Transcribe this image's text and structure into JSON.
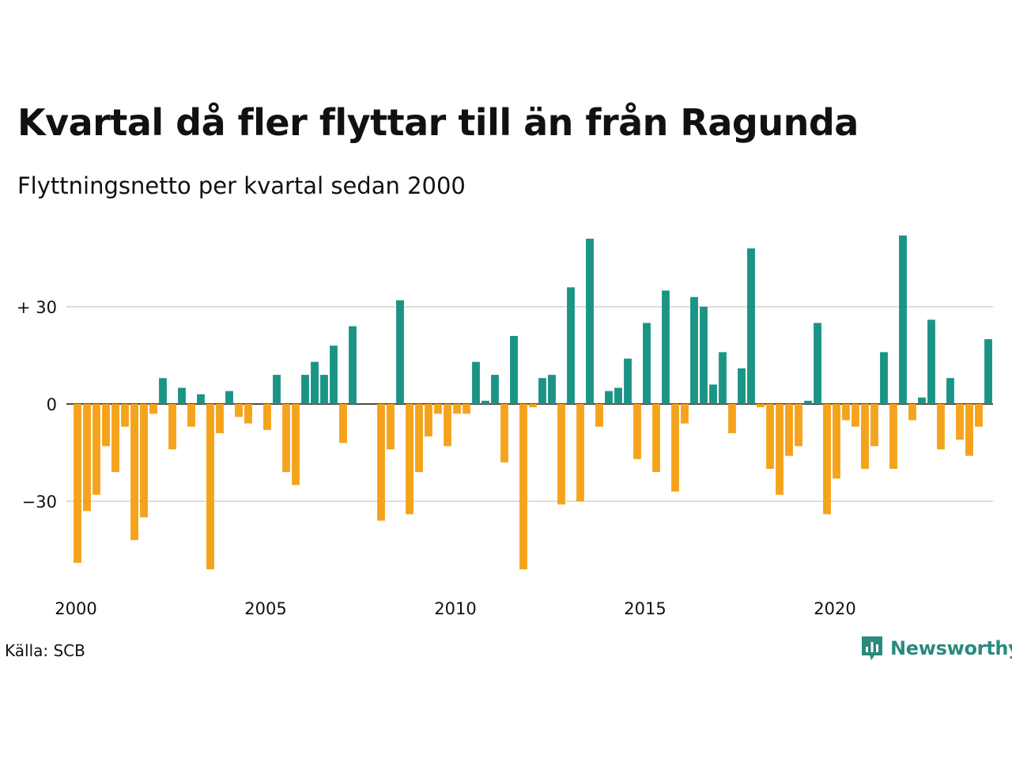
{
  "title": "Kvartal då fler flyttar till än från Ragunda",
  "subtitle": "Flyttningsnetto per kvartal sedan 2000",
  "source": "Källa: SCB",
  "brand": {
    "name": "Newsworthy",
    "logo_icon": "bar-chart-speech-bubble-icon"
  },
  "colors": {
    "positive": "#1a9485",
    "negative": "#f5a31c",
    "grid": "#dddddd",
    "zero_line": "#111111",
    "brand": "#2a8a7c"
  },
  "chart_data": {
    "type": "bar",
    "x_start": "2000 Q1",
    "x_ticks": [
      "2000",
      "2005",
      "2010",
      "2015",
      "2020"
    ],
    "y_ticks": [
      30,
      0,
      -30
    ],
    "y_tick_labels": [
      "+ 30",
      "0",
      "−30"
    ],
    "ylim": [
      -55,
      55
    ],
    "grid": true,
    "values": [
      -49,
      -33,
      -28,
      -13,
      -21,
      -7,
      -42,
      -35,
      -3,
      8,
      -14,
      5,
      -7,
      3,
      -51,
      -9,
      4,
      -4,
      -6,
      0,
      -8,
      9,
      -21,
      -25,
      9,
      13,
      9,
      18,
      -12,
      24,
      0,
      0,
      -36,
      -14,
      32,
      -34,
      -21,
      -10,
      -3,
      -13,
      -3,
      -3,
      13,
      1,
      9,
      -18,
      21,
      -51,
      -1,
      8,
      9,
      -31,
      36,
      -30,
      51,
      -7,
      4,
      5,
      14,
      -17,
      25,
      -21,
      35,
      -27,
      -6,
      33,
      30,
      6,
      16,
      -9,
      11,
      48,
      -1,
      -20,
      -28,
      -16,
      -13,
      1,
      25,
      -34,
      -23,
      -5,
      -7,
      -20,
      -13,
      16,
      -20,
      52,
      -5,
      2,
      26,
      -14,
      8,
      -11,
      -16,
      -7,
      20
    ]
  }
}
